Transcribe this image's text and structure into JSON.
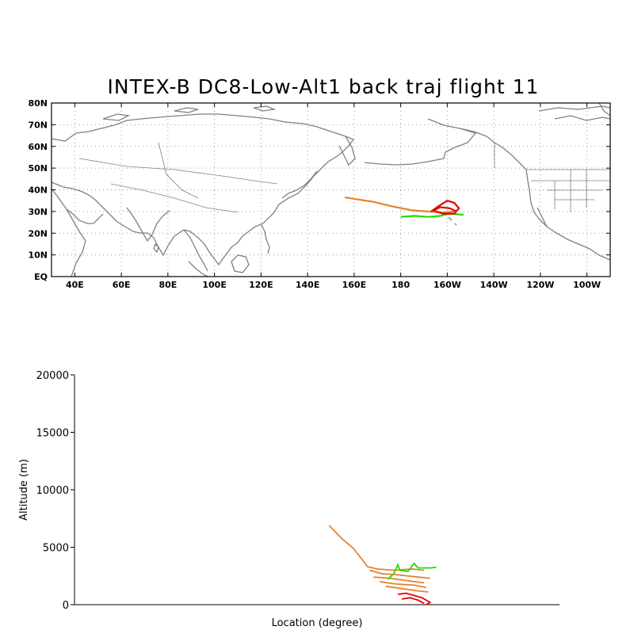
{
  "map": {
    "title": "INTEX-B DC8-Low-Alt1 back traj flight 11",
    "lat_ticks": [
      "EQ",
      "10N",
      "20N",
      "30N",
      "40N",
      "50N",
      "60N",
      "70N",
      "80N"
    ],
    "lon_ticks": [
      "40E",
      "60E",
      "80E",
      "100E",
      "120E",
      "140E",
      "160E",
      "180",
      "160W",
      "140W",
      "120W",
      "100W"
    ],
    "lon_range": [
      30,
      270
    ],
    "lat_range": [
      0,
      80
    ]
  },
  "profile": {
    "ylabel": "Altitude (m)",
    "xlabel": "Location (degree)",
    "y_ticks": [
      "0",
      "5000",
      "10000",
      "15000",
      "20000"
    ],
    "ylim": [
      0,
      20000
    ]
  },
  "colors": {
    "coast": "#808080",
    "orange": "#e8802c",
    "green": "#22dd00",
    "red": "#e80000"
  },
  "chart_data": {
    "type": "line",
    "map_series": [
      {
        "color": "orange",
        "points": [
          [
            156,
            36.5
          ],
          [
            168,
            34.5
          ],
          [
            178,
            32
          ],
          [
            185,
            30.5
          ],
          [
            192,
            30
          ],
          [
            198,
            29.5
          ],
          [
            203,
            30
          ]
        ]
      },
      {
        "color": "green",
        "points": [
          [
            180,
            27.5
          ],
          [
            186,
            28
          ],
          [
            192,
            27.5
          ],
          [
            197,
            28
          ],
          [
            201,
            29
          ],
          [
            207,
            28.5
          ]
        ]
      },
      {
        "color": "red",
        "points": [
          [
            193,
            30
          ],
          [
            197,
            33
          ],
          [
            200,
            35
          ],
          [
            203,
            34
          ],
          [
            205,
            31.5
          ],
          [
            203,
            29
          ],
          [
            198,
            29
          ],
          [
            194,
            30.5
          ],
          [
            197,
            32
          ],
          [
            201,
            31.5
          ],
          [
            204,
            30
          ]
        ]
      }
    ],
    "profile_series": [
      {
        "color": "orange",
        "points": [
          [
            156,
            6900
          ],
          [
            162,
            5800
          ],
          [
            168,
            4900
          ],
          [
            172,
            4000
          ],
          [
            175,
            3300
          ],
          [
            180,
            3100
          ],
          [
            188,
            3000
          ],
          [
            197,
            3100
          ],
          [
            203,
            3000
          ]
        ]
      },
      {
        "color": "orange",
        "points": [
          [
            176,
            3000
          ],
          [
            182,
            2700
          ],
          [
            190,
            2600
          ],
          [
            200,
            2400
          ],
          [
            206,
            2300
          ]
        ]
      },
      {
        "color": "orange",
        "points": [
          [
            178,
            2400
          ],
          [
            186,
            2300
          ],
          [
            194,
            2100
          ],
          [
            203,
            1900
          ]
        ]
      },
      {
        "color": "orange",
        "points": [
          [
            181,
            2000
          ],
          [
            189,
            1800
          ],
          [
            198,
            1700
          ],
          [
            204,
            1500
          ]
        ]
      },
      {
        "color": "orange",
        "points": [
          [
            184,
            1600
          ],
          [
            192,
            1400
          ],
          [
            200,
            1200
          ],
          [
            205,
            1100
          ]
        ]
      },
      {
        "color": "green",
        "points": [
          [
            185,
            2200
          ],
          [
            188,
            2700
          ],
          [
            190,
            3500
          ],
          [
            191,
            3000
          ],
          [
            195,
            2900
          ],
          [
            198,
            3600
          ],
          [
            200,
            3200
          ],
          [
            206,
            3200
          ],
          [
            209,
            3250
          ]
        ]
      },
      {
        "color": "red",
        "points": [
          [
            190,
            900
          ],
          [
            194,
            1000
          ],
          [
            198,
            800
          ],
          [
            202,
            600
          ],
          [
            206,
            200
          ],
          [
            204,
            0
          ]
        ]
      },
      {
        "color": "red",
        "points": [
          [
            192,
            500
          ],
          [
            196,
            600
          ],
          [
            200,
            400
          ],
          [
            203,
            100
          ]
        ]
      }
    ]
  }
}
